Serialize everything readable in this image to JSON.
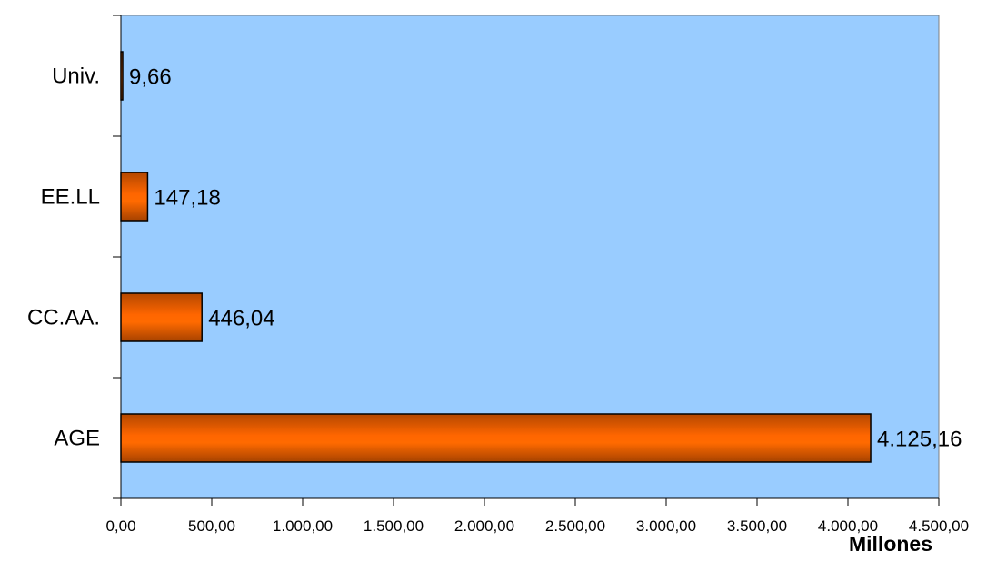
{
  "chart_data": {
    "type": "bar",
    "orientation": "horizontal",
    "categories": [
      "AGE",
      "CC.AA.",
      "EE.LL",
      "Univ."
    ],
    "values": [
      4125.16,
      446.04,
      147.18,
      9.66
    ],
    "data_labels": [
      "4.125,16",
      "446,04",
      "147,18",
      "9,66"
    ],
    "xlim": [
      0,
      4500
    ],
    "x_ticks": [
      0,
      500,
      1000,
      1500,
      2000,
      2500,
      3000,
      3500,
      4000,
      4500
    ],
    "x_tick_labels": [
      "0,00",
      "500,00",
      "1.000,00",
      "1.500,00",
      "2.000,00",
      "2.500,00",
      "3.000,00",
      "3.500,00",
      "4.000,00",
      "4.500,00"
    ],
    "xlabel": "Millones",
    "ylabel": "",
    "title": "",
    "grid": false,
    "legend": "none",
    "colors": {
      "plot_background": "#99ccff",
      "bar_fill": "#ff6600",
      "bar_fill_dark": "#b34700",
      "bar_edge": "#000000"
    }
  }
}
